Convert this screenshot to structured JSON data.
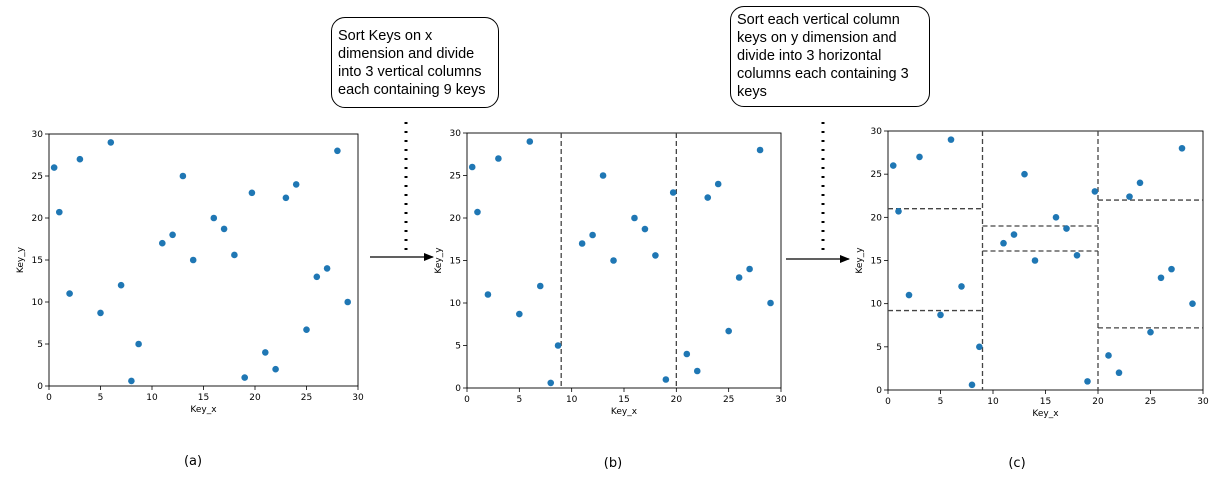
{
  "notes": [
    "Sort Keys on x\ndimension and divide\ninto 3 vertical columns\neach containing 9 keys",
    "Sort each vertical column\nkeys on y dimension and\ndivide into 3 horizontal\ncolumns each containing 3\nkeys"
  ],
  "colors": {
    "point": "#1f77b4",
    "axis": "#000000",
    "partition": "#444444"
  },
  "chart_data": [
    {
      "type": "scatter",
      "caption": "(a)",
      "xlabel": "Key_x",
      "ylabel": "Key_y",
      "xlim": [
        0,
        30
      ],
      "ylim": [
        0,
        30
      ],
      "xticks": [
        0,
        5,
        10,
        15,
        20,
        25,
        30
      ],
      "yticks": [
        0,
        5,
        10,
        15,
        20,
        25,
        30
      ],
      "points": [
        [
          0.5,
          26
        ],
        [
          1,
          20.7
        ],
        [
          2,
          11
        ],
        [
          3,
          27
        ],
        [
          5,
          8.7
        ],
        [
          6,
          29
        ],
        [
          7,
          12
        ],
        [
          8,
          0.6
        ],
        [
          8.7,
          5
        ],
        [
          11,
          17
        ],
        [
          12,
          18
        ],
        [
          13,
          25
        ],
        [
          14,
          15
        ],
        [
          16,
          20
        ],
        [
          17,
          18.7
        ],
        [
          18,
          15.6
        ],
        [
          19,
          1
        ],
        [
          19.7,
          23
        ],
        [
          21,
          4
        ],
        [
          22,
          2
        ],
        [
          23,
          22.4
        ],
        [
          24,
          24
        ],
        [
          25,
          6.7
        ],
        [
          26,
          13
        ],
        [
          27,
          14
        ],
        [
          28,
          28
        ],
        [
          29,
          10
        ]
      ],
      "vlines": [],
      "hsegments": []
    },
    {
      "type": "scatter",
      "caption": "(b)",
      "xlabel": "Key_x",
      "ylabel": "Key_y",
      "xlim": [
        0,
        30
      ],
      "ylim": [
        0,
        30
      ],
      "xticks": [
        0,
        5,
        10,
        15,
        20,
        25,
        30
      ],
      "yticks": [
        0,
        5,
        10,
        15,
        20,
        25,
        30
      ],
      "points": [
        [
          0.5,
          26
        ],
        [
          1,
          20.7
        ],
        [
          2,
          11
        ],
        [
          3,
          27
        ],
        [
          5,
          8.7
        ],
        [
          6,
          29
        ],
        [
          7,
          12
        ],
        [
          8,
          0.6
        ],
        [
          8.7,
          5
        ],
        [
          11,
          17
        ],
        [
          12,
          18
        ],
        [
          13,
          25
        ],
        [
          14,
          15
        ],
        [
          16,
          20
        ],
        [
          17,
          18.7
        ],
        [
          18,
          15.6
        ],
        [
          19,
          1
        ],
        [
          19.7,
          23
        ],
        [
          21,
          4
        ],
        [
          22,
          2
        ],
        [
          23,
          22.4
        ],
        [
          24,
          24
        ],
        [
          25,
          6.7
        ],
        [
          26,
          13
        ],
        [
          27,
          14
        ],
        [
          28,
          28
        ],
        [
          29,
          10
        ]
      ],
      "vlines": [
        9,
        20
      ],
      "hsegments": []
    },
    {
      "type": "scatter",
      "caption": "(c)",
      "xlabel": "Key_x",
      "ylabel": "Key_y",
      "xlim": [
        0,
        30
      ],
      "ylim": [
        0,
        30
      ],
      "xticks": [
        0,
        5,
        10,
        15,
        20,
        25,
        30
      ],
      "yticks": [
        0,
        5,
        10,
        15,
        20,
        25,
        30
      ],
      "points": [
        [
          0.5,
          26
        ],
        [
          1,
          20.7
        ],
        [
          2,
          11
        ],
        [
          3,
          27
        ],
        [
          5,
          8.7
        ],
        [
          6,
          29
        ],
        [
          7,
          12
        ],
        [
          8,
          0.6
        ],
        [
          8.7,
          5
        ],
        [
          11,
          17
        ],
        [
          12,
          18
        ],
        [
          13,
          25
        ],
        [
          14,
          15
        ],
        [
          16,
          20
        ],
        [
          17,
          18.7
        ],
        [
          18,
          15.6
        ],
        [
          19,
          1
        ],
        [
          19.7,
          23
        ],
        [
          21,
          4
        ],
        [
          22,
          2
        ],
        [
          23,
          22.4
        ],
        [
          24,
          24
        ],
        [
          25,
          6.7
        ],
        [
          26,
          13
        ],
        [
          27,
          14
        ],
        [
          28,
          28
        ],
        [
          29,
          10
        ]
      ],
      "vlines": [
        9,
        20
      ],
      "hsegments": [
        [
          0,
          9,
          21
        ],
        [
          0,
          9,
          9.2
        ],
        [
          9,
          20,
          19
        ],
        [
          9,
          20,
          16.1
        ],
        [
          20,
          30,
          22
        ],
        [
          20,
          30,
          7.2
        ]
      ]
    }
  ]
}
